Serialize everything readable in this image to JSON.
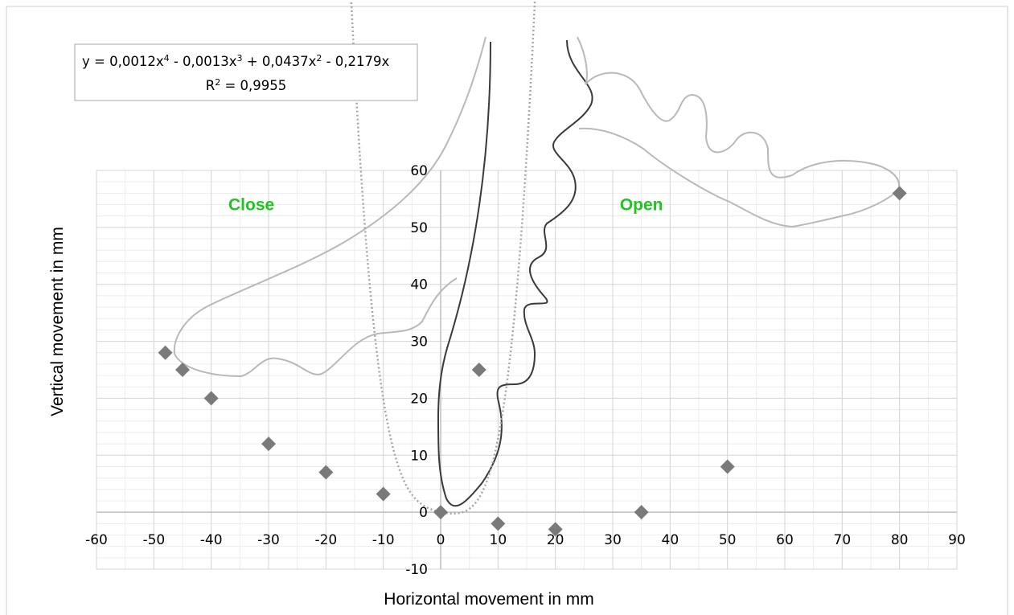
{
  "chart_data": {
    "type": "scatter",
    "title": "",
    "xlabel": "Horizontal movement in mm",
    "ylabel": "Vertical movement in mm",
    "xlim": [
      -60,
      90
    ],
    "ylim": [
      -10,
      60
    ],
    "x_ticks": [
      -60,
      -50,
      -40,
      -30,
      -20,
      -10,
      0,
      10,
      20,
      30,
      40,
      50,
      60,
      70,
      80,
      90
    ],
    "y_ticks": [
      -10,
      0,
      10,
      20,
      30,
      40,
      50,
      60
    ],
    "x_tick_labels": [
      "-60",
      "-50",
      "-40",
      "-30",
      "-20",
      "-10",
      "0",
      "10",
      "20",
      "30",
      "40",
      "50",
      "60",
      "70",
      "80",
      "90"
    ],
    "y_tick_labels": [
      "-10",
      "0",
      "10",
      "20",
      "30",
      "40",
      "50",
      "60"
    ],
    "grid": true,
    "minor_grid": true,
    "marker": "diamond",
    "marker_color": "#7a7a7a",
    "trendline_color": "#a6a6a6",
    "series": [
      {
        "points": [
          {
            "x": -48,
            "y": 28
          },
          {
            "x": -45,
            "y": 25
          },
          {
            "x": -40,
            "y": 20
          },
          {
            "x": -30,
            "y": 12
          },
          {
            "x": -20,
            "y": 7
          },
          {
            "x": -10,
            "y": 3.2
          },
          {
            "x": 0,
            "y": 0
          },
          {
            "x": 6.7,
            "y": 25
          },
          {
            "x": 10,
            "y": -2
          },
          {
            "x": 20,
            "y": -3
          },
          {
            "x": 35,
            "y": 0
          },
          {
            "x": 50,
            "y": 8
          },
          {
            "x": 80,
            "y": 56
          }
        ]
      }
    ],
    "trendline": {
      "type": "polynomial",
      "order": 4,
      "coefficients": [
        0,
        -0.2179,
        0.0437,
        -0.0013,
        0.0012
      ],
      "equation_line1": "y = 0,0012x",
      "equation_line1_parts": [
        {
          "text": "y = 0,0012x",
          "sup": "4"
        },
        {
          "text": " - 0,0013x",
          "sup": "3"
        },
        {
          "text": " + 0,0437x",
          "sup": "2"
        },
        {
          "text": " - 0,2179x",
          "sup": ""
        }
      ],
      "r2_parts": [
        {
          "text": "R",
          "sup": "2"
        },
        {
          "text": " = 0,9955",
          "sup": ""
        }
      ]
    },
    "annotations": [
      {
        "text": "Close",
        "x": -33,
        "y": 53
      },
      {
        "text": "Open",
        "x": 35,
        "y": 53
      }
    ]
  }
}
